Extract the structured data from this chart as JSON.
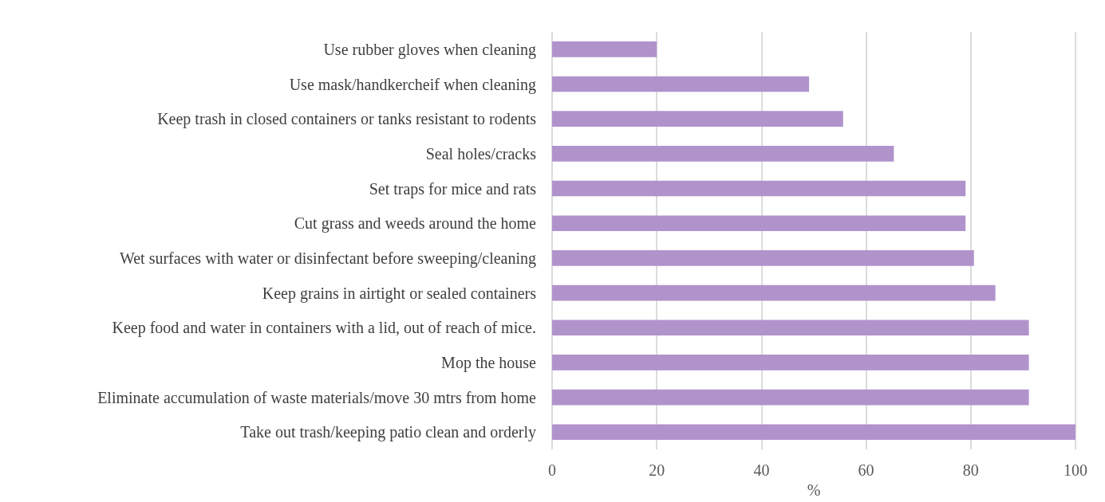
{
  "chart_data": {
    "type": "bar",
    "orientation": "horizontal",
    "xlabel": "%",
    "categories": [
      "Use rubber gloves when cleaning",
      "Use mask/handkercheif when cleaning",
      "Keep trash in closed containers or tanks resistant to rodents",
      "Seal holes/cracks",
      "Set traps for mice and rats",
      "Cut grass and weeds around the home",
      "Wet surfaces with water or disinfectant before sweeping/cleaning",
      "Keep grains in airtight or sealed containers",
      "Keep food and water in containers with a lid, out of reach of mice.",
      "Mop the house",
      "Eliminate accumulation of waste materials/move 30 mtrs from home",
      "Take out trash/keeping patio clean and orderly"
    ],
    "values": [
      20,
      49.1,
      55.6,
      65.3,
      79,
      79,
      80.6,
      84.7,
      91.1,
      91.1,
      91.1,
      100
    ],
    "color": "#b193cc",
    "xlim": [
      0,
      100
    ],
    "xticks": [
      0,
      20,
      40,
      60,
      80,
      100
    ],
    "grid": "x"
  }
}
